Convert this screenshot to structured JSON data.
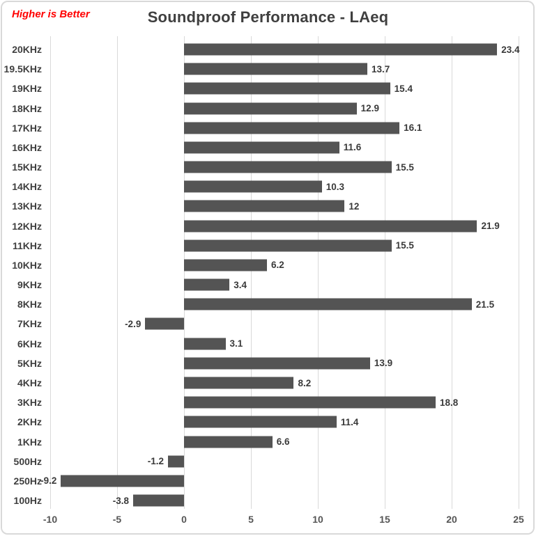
{
  "note": {
    "text": "Higher is Better",
    "color": "#ff0000"
  },
  "title": "Soundproof Performance - LAeq",
  "chart_data": {
    "type": "bar",
    "orientation": "horizontal",
    "title": "Soundproof Performance - LAeq",
    "annotation": "Higher is Better",
    "categories": [
      "20KHz",
      "19.5KHz",
      "19KHz",
      "18KHz",
      "17KHz",
      "16KHz",
      "15KHz",
      "14KHz",
      "13KHz",
      "12KHz",
      "11KHz",
      "10KHz",
      "9KHz",
      "8KHz",
      "7KHz",
      "6KHz",
      "5KHz",
      "4KHz",
      "3KHz",
      "2KHz",
      "1KHz",
      "500Hz",
      "250Hz",
      "100Hz"
    ],
    "values": [
      23.4,
      13.7,
      15.4,
      12.9,
      16.1,
      11.6,
      15.5,
      10.3,
      12,
      21.9,
      15.5,
      6.2,
      3.4,
      21.5,
      -2.9,
      3.1,
      13.9,
      8.2,
      18.8,
      11.4,
      6.6,
      -1.2,
      -9.2,
      -3.8
    ],
    "value_labels": [
      "23.4",
      "13.7",
      "15.4",
      "12.9",
      "16.1",
      "11.6",
      "15.5",
      "10.3",
      "12",
      "21.9",
      "15.5",
      "6.2",
      "3.4",
      "21.5",
      "-2.9",
      "3.1",
      "13.9",
      "8.2",
      "18.8",
      "11.4",
      "6.6",
      "-1.2",
      "-9.2",
      "-3.8"
    ],
    "xticks": [
      -10,
      -5,
      0,
      5,
      10,
      15,
      20,
      25
    ],
    "xtick_labels": [
      "-10",
      "-5",
      "0",
      "5",
      "10",
      "15",
      "20",
      "25"
    ],
    "xlim": [
      -10,
      25
    ],
    "xlabel": "",
    "ylabel": "",
    "grid": true,
    "legend": false,
    "bar_color": "#545454",
    "gridline_color": "#d9d9d9",
    "label_color": "#3a3a3a",
    "title_color": "#3f3f3f"
  }
}
